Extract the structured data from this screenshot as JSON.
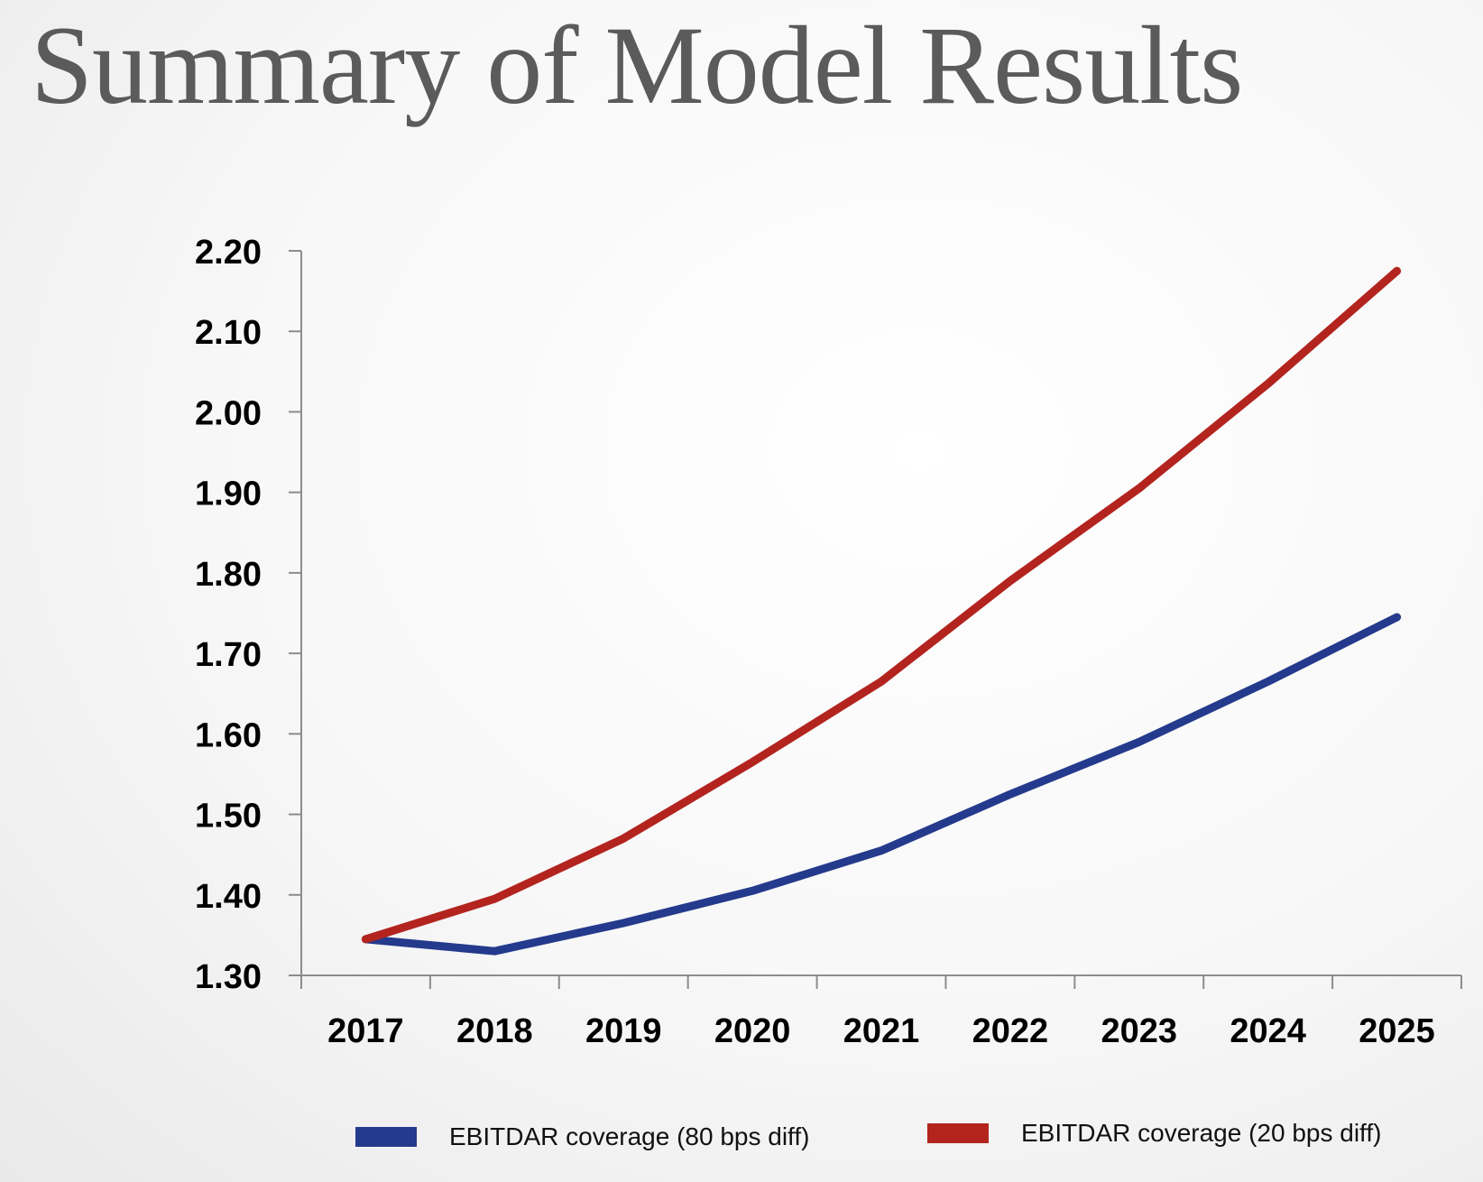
{
  "slide": {
    "title": "Summary of Model Results"
  },
  "chart_data": {
    "type": "line",
    "x": [
      "2017",
      "2018",
      "2019",
      "2020",
      "2021",
      "2022",
      "2023",
      "2024",
      "2025"
    ],
    "series": [
      {
        "name": "EBITDAR coverage (80 bps diff)",
        "color": "#243a8c",
        "values": [
          1.345,
          1.33,
          1.365,
          1.405,
          1.455,
          1.525,
          1.59,
          1.665,
          1.745
        ]
      },
      {
        "name": "EBITDAR coverage (20 bps diff)",
        "color": "#b3241f",
        "values": [
          1.345,
          1.395,
          1.47,
          1.565,
          1.665,
          1.79,
          1.905,
          2.035,
          2.175
        ]
      }
    ],
    "ylim": [
      1.3,
      2.2
    ],
    "yticks": [
      "1.30",
      "1.40",
      "1.50",
      "1.60",
      "1.70",
      "1.80",
      "1.90",
      "2.00",
      "2.10",
      "2.20"
    ],
    "title": "",
    "xlabel": "",
    "ylabel": "",
    "grid": false,
    "legend_position": "bottom"
  }
}
